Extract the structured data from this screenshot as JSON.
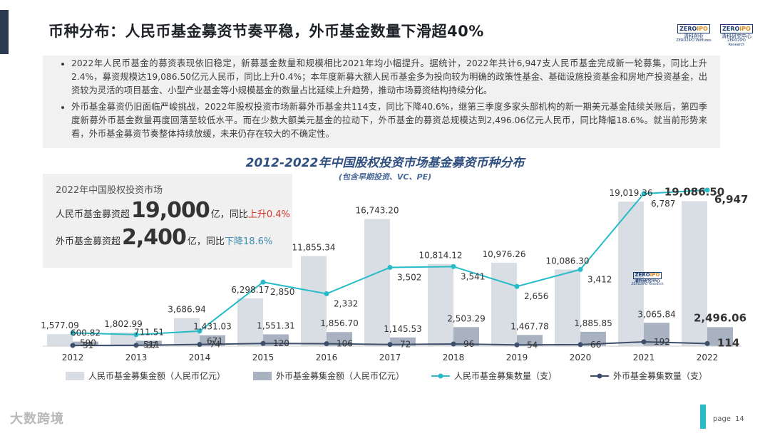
{
  "header": {
    "title": "币种分布：人民币基金募资节奏平稳，外币基金数量下滑超40%",
    "logos": [
      {
        "mark_a": "ZERO",
        "mark_b": "IPO",
        "line1": "清科创业",
        "line2": "ZERO2IPO Ventures"
      },
      {
        "mark_a": "ZERO",
        "mark_b": "IPO",
        "line1": "清科研究中心",
        "line2": "ZERO2IPO Research"
      }
    ]
  },
  "bullets": [
    "2022年人民币基金的募资表现依旧稳定，新募基金数量和规模相比2021年均小幅提升。据统计，2022年共计6,947支人民币基金完成新一轮募集，同比上升2.4%，募资规模达19,086.50亿元人民币，同比上升0.4%；本年度新募大额人民币基金多为投向较为明确的政策性基金、基础设施投资基金和房地产投资基金，出资较为灵活的项目基金、小型产业基金等小规模基金的数量占比延续上升趋势，推动市场募资结构持续分化。",
    "外币基金募资仍旧面临严峻挑战，2022年股权投资市场新募外币基金共114支，同比下降40.6%，继第三季度多家头部机构的新一期美元基金陆续关账后，第四季度新募外币基金数量再度回落至较低水平。而在少数大额美元基金的拉动下，外币基金的募资总规模达到2,496.06亿元人民币，同比降幅18.6%。就当前形势来看，外币基金募资节奏整体持续放缓，未来仍存在较大的不确定性。"
  ],
  "summary": {
    "line0": "2022年中国股权投资市场",
    "rmb_prefix": "人民币基金募资超",
    "rmb_big": "19,000",
    "rmb_unit": "亿，",
    "rmb_yoy_prefix": "同比",
    "rmb_yoy": "上升0.4%",
    "fx_prefix": "外币基金募资超",
    "fx_big": "2,400",
    "fx_unit": "亿，",
    "fx_yoy_prefix": "同比",
    "fx_yoy": "下降18.6%"
  },
  "mid_logo": {
    "mark_a": "ZERO",
    "mark_b": "IPO",
    "line1": "清科研究中心",
    "line2": "ZERO2IPO Research"
  },
  "chart_data": {
    "type": "bar+line",
    "title": "2012-2022年中国股权投资市场基金募资币种分布",
    "subtitle": "(包含早期投资、VC、PE)",
    "categories": [
      "2012",
      "2013",
      "2014",
      "2015",
      "2016",
      "2017",
      "2018",
      "2019",
      "2020",
      "2021",
      "2022"
    ],
    "series": [
      {
        "name": "人民币基金募集金额（人民币亿元）",
        "kind": "bar",
        "color": "#d9dde4",
        "values": [
          1577.09,
          1802.99,
          3686.94,
          6298.17,
          11855.34,
          16743.2,
          10814.12,
          10976.26,
          10086.3,
          19019.36,
          19086.5
        ],
        "labels": [
          "1,577.09",
          "1,802.99",
          "3,686.94",
          "6,298.17",
          "11,855.34",
          "16,743.20",
          "10,814.12",
          "10,976.26",
          "10,086.30",
          "19,019.36",
          "19,086.50"
        ]
      },
      {
        "name": "外币基金募集金额（人民币亿元）",
        "kind": "bar",
        "color": "#a9b2c0",
        "values": [
          600.82,
          711.51,
          1431.03,
          1551.31,
          1856.7,
          1145.53,
          2503.29,
          1467.78,
          1885.85,
          3065.84,
          2496.06
        ],
        "labels": [
          "600.82",
          "711.51",
          "1,431.03",
          "1,551.31",
          "1,856.70",
          "1,145.53",
          "2,503.29",
          "1,467.78",
          "1,885.85",
          "3,065.84",
          "2,496.06"
        ]
      },
      {
        "name": "人民币基金募集数量（支）",
        "kind": "line",
        "color": "#27bcc7",
        "values": [
          590,
          511,
          671,
          2850,
          2332,
          3502,
          3541,
          2656,
          3412,
          6787,
          6947
        ],
        "labels": [
          "590",
          "511",
          "671",
          "2,850",
          "2,332",
          "3,502",
          "3,541",
          "2,656",
          "3,412",
          "6,787",
          "6,947"
        ]
      },
      {
        "name": "外币基金募集数量（支）",
        "kind": "line",
        "color": "#3d4f6a",
        "values": [
          31,
          37,
          74,
          120,
          106,
          72,
          96,
          54,
          66,
          192,
          114
        ],
        "labels": [
          "31",
          "37",
          "74",
          "120",
          "106",
          "72",
          "96",
          "54",
          "66",
          "192",
          "114"
        ]
      }
    ],
    "y_amount_range": [
      0,
      21000
    ],
    "y_count_range": [
      0,
      7800
    ],
    "grid": false,
    "legend_position": "bottom"
  },
  "footer": {
    "watermark": "大数跨境",
    "page_label": "page",
    "page_number": "14"
  }
}
